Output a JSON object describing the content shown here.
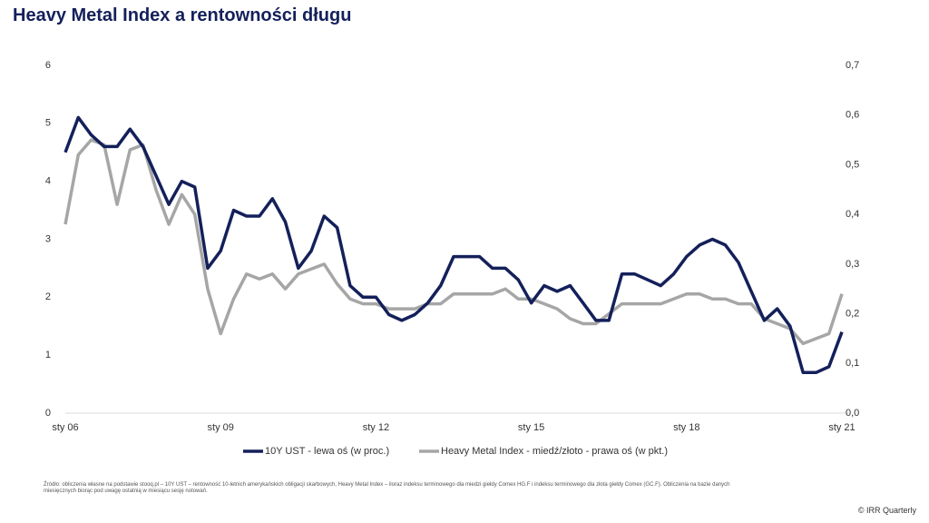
{
  "chart_data": {
    "type": "line",
    "title": "Heavy Metal Index a rentowności długu",
    "categories": [
      "sty 06",
      null,
      null,
      null,
      null,
      null,
      null,
      null,
      null,
      null,
      null,
      null,
      "sty 09",
      null,
      null,
      null,
      null,
      null,
      null,
      null,
      null,
      null,
      null,
      null,
      "sty 12",
      null,
      null,
      null,
      null,
      null,
      null,
      null,
      null,
      null,
      null,
      null,
      "sty 15",
      null,
      null,
      null,
      null,
      null,
      null,
      null,
      null,
      null,
      null,
      null,
      "sty 18",
      null,
      null,
      null,
      null,
      null,
      null,
      null,
      null,
      null,
      null,
      null,
      "sty 21"
    ],
    "series": [
      {
        "name": "10Y UST - lewa oś (w proc.)",
        "color": "#14205a",
        "axis": "y",
        "values": [
          4.5,
          5.1,
          4.8,
          4.6,
          4.6,
          4.9,
          4.6,
          4.1,
          3.6,
          4.0,
          3.9,
          2.5,
          2.8,
          3.5,
          3.4,
          3.4,
          3.7,
          3.3,
          2.5,
          2.8,
          3.4,
          3.2,
          2.2,
          2.0,
          2.0,
          1.7,
          1.6,
          1.7,
          1.9,
          2.2,
          2.7,
          2.7,
          2.7,
          2.5,
          2.5,
          2.3,
          1.9,
          2.2,
          2.1,
          2.2,
          1.9,
          1.6,
          1.6,
          2.4,
          2.4,
          2.3,
          2.2,
          2.4,
          2.7,
          2.9,
          3.0,
          2.9,
          2.6,
          2.1,
          1.6,
          1.8,
          1.5,
          0.7,
          0.7,
          0.8,
          1.4
        ]
      },
      {
        "name": "Heavy Metal Index - miedź/złoto - prawa oś (w pkt.)",
        "color": "#a6a6a6",
        "axis": "y2",
        "values": [
          0.38,
          0.52,
          0.55,
          0.54,
          0.42,
          0.53,
          0.54,
          0.45,
          0.38,
          0.44,
          0.4,
          0.25,
          0.16,
          0.23,
          0.28,
          0.27,
          0.28,
          0.25,
          0.28,
          0.29,
          0.3,
          0.26,
          0.23,
          0.22,
          0.22,
          0.21,
          0.21,
          0.21,
          0.22,
          0.22,
          0.24,
          0.24,
          0.24,
          0.24,
          0.25,
          0.23,
          0.23,
          0.22,
          0.21,
          0.19,
          0.18,
          0.18,
          0.2,
          0.22,
          0.22,
          0.22,
          0.22,
          0.23,
          0.24,
          0.24,
          0.23,
          0.23,
          0.22,
          0.22,
          0.19,
          0.18,
          0.17,
          0.14,
          0.15,
          0.16,
          0.24
        ]
      }
    ],
    "ylim": [
      0,
      6
    ],
    "yticks": [
      0,
      1,
      2,
      3,
      4,
      5,
      6
    ],
    "y2lim": [
      0,
      0.7
    ],
    "y2ticks": [
      {
        "value": 0,
        "label": "0,0"
      },
      {
        "value": 0.1,
        "label": "0,1"
      },
      {
        "value": 0.2,
        "label": "0,2"
      },
      {
        "value": 0.3,
        "label": "0,3"
      },
      {
        "value": 0.4,
        "label": "0,4"
      },
      {
        "value": 0.5,
        "label": "0,5"
      },
      {
        "value": 0.6,
        "label": "0,6"
      },
      {
        "value": 0.7,
        "label": "0,7"
      }
    ],
    "grid": false,
    "source": "Źródło: obliczenia własne na podstawie stooq.pl – 10Y UST – rentowność 10-letnich amerykańskich obligacji skarbowych, Heavy Metal Index – iloraz indeksu terminowego dla miedzi giełdy Comex HG.F i indeksu terminowego dla złota giełdy Comex (GC.F). Obliczenia na bazie danych miesięcznych biorąc pod uwagę ostatnią w miesiącu sesję notowań.",
    "copyright": "© IRR Quarterly"
  }
}
